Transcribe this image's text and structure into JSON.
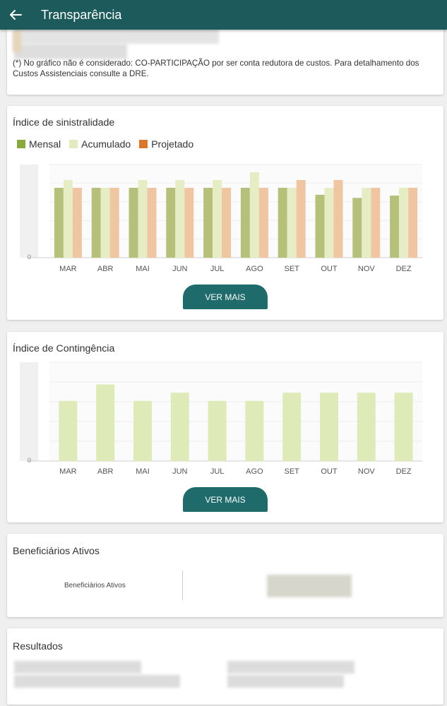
{
  "header": {
    "title": "Transparência",
    "back_icon": "arrow-left-icon"
  },
  "note": {
    "text": "(*) No gráfico não é considerado: CO-PARTICIPAÇÃO por ser  conta redutora de custos. Para detalhamento dos Custos Assistenciais consulte a DRE."
  },
  "sinistralidade": {
    "title": "Índice de sinistralidade",
    "legend": [
      {
        "label": "Mensal",
        "color": "#8aa93c"
      },
      {
        "label": "Acumulado",
        "color": "#e2ebbf"
      },
      {
        "label": "Projetado",
        "color": "#d9782d"
      }
    ],
    "button": "VER MAIS"
  },
  "contingencia": {
    "title": "Índice de Contingência",
    "button": "VER MAIS"
  },
  "beneficiarios": {
    "title": "Beneficiários Ativos",
    "label": "Beneficiários Ativos"
  },
  "resultados": {
    "title": "Resultados"
  },
  "chart_data": [
    {
      "type": "bar",
      "title": "Índice de sinistralidade",
      "categories": [
        "MAR",
        "ABR",
        "MAI",
        "JUN",
        "JUL",
        "AGO",
        "SET",
        "OUT",
        "NOV",
        "DEZ"
      ],
      "y_tick_labels": [
        "0"
      ],
      "series": [
        {
          "name": "Mensal",
          "color": "#b7c07a",
          "values": [
            0.9,
            0.9,
            0.9,
            0.9,
            0.9,
            0.9,
            0.9,
            0.81,
            0.77,
            0.8
          ]
        },
        {
          "name": "Acumulado",
          "color": "#e6edc4",
          "values": [
            1.0,
            0.9,
            1.0,
            1.0,
            1.0,
            1.1,
            0.9,
            0.9,
            0.9,
            0.9
          ]
        },
        {
          "name": "Projetado",
          "color": "#efc5a2",
          "values": [
            0.9,
            0.9,
            0.9,
            0.9,
            0.9,
            0.9,
            1.0,
            1.0,
            0.9,
            0.9
          ]
        }
      ],
      "ylim": [
        0,
        1.2
      ],
      "grid": true
    },
    {
      "type": "bar",
      "title": "Índice de Contingência",
      "categories": [
        "MAR",
        "ABR",
        "MAI",
        "JUN",
        "JUL",
        "AGO",
        "SET",
        "OUT",
        "NOV",
        "DEZ"
      ],
      "y_tick_labels": [
        "0"
      ],
      "series": [
        {
          "name": "",
          "color": "#dfeab9",
          "values": [
            0.73,
            0.93,
            0.73,
            0.83,
            0.73,
            0.73,
            0.83,
            0.83,
            0.83,
            0.83
          ]
        }
      ],
      "ylim": [
        0,
        1.2
      ],
      "grid": true
    }
  ]
}
